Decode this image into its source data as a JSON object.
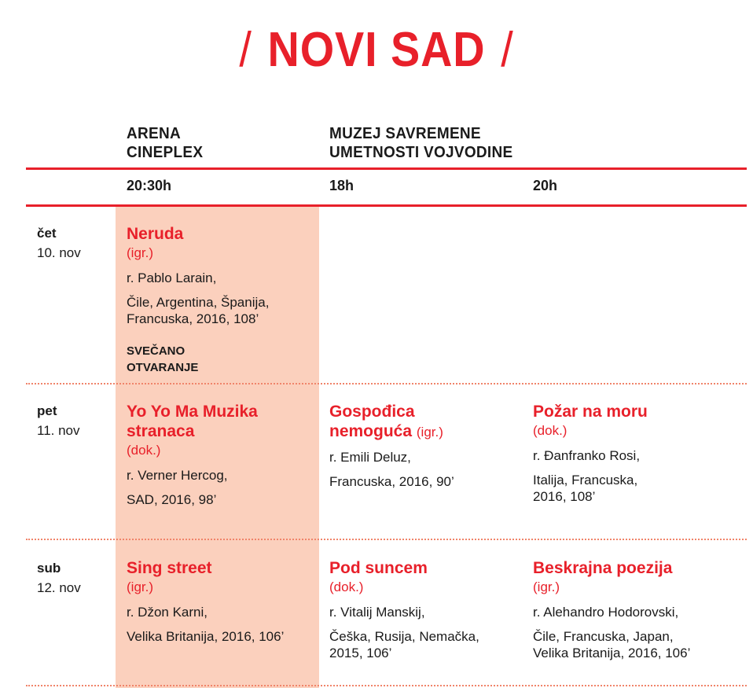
{
  "title": "NOVI SAD",
  "colors": {
    "accent": "#e8202a",
    "highlight": "#fbd0bd",
    "dotted": "#f0846a"
  },
  "venues": [
    {
      "name_line1": "ARENA",
      "name_line2": "CINEPLEX",
      "times": [
        "20:30h"
      ]
    },
    {
      "name_line1": "MUZEJ SAVREMENE",
      "name_line2": "UMETNOSTI VOJVODINE",
      "times": [
        "18h",
        "20h"
      ]
    }
  ],
  "rows": [
    {
      "day": "čet",
      "date": "10. nov",
      "films": [
        {
          "title": "Neruda",
          "genre": "(igr.)",
          "director": "r. Pablo Larain,",
          "country": "Čile, Argentina, Španija, Francuska, 2016, 108’",
          "note_line1": "SVEČANO",
          "note_line2": "OTVARANJE"
        },
        null,
        null
      ]
    },
    {
      "day": "pet",
      "date": "11. nov",
      "films": [
        {
          "title": "Yo Yo Ma Muzika stranaca",
          "genre": "(dok.)",
          "director": "r. Verner Hercog,",
          "country": "SAD, 2016, 98’"
        },
        {
          "title": "Gospođica nemoguća",
          "genre": "(igr.)",
          "director": "r. Emili Deluz,",
          "country": "Francuska, 2016, 90’"
        },
        {
          "title": "Požar na moru",
          "genre": "(dok.)",
          "director": "r. Đanfranko Rosi,",
          "country": "Italija, Francuska, 2016, 108’"
        }
      ]
    },
    {
      "day": "sub",
      "date": "12. nov",
      "films": [
        {
          "title": "Sing street",
          "genre": "(igr.)",
          "director": "r. Džon Karni,",
          "country": "Velika Britanija, 2016, 106’"
        },
        {
          "title": "Pod suncem",
          "genre": "(dok.)",
          "director": "r. Vitalij Manskij,",
          "country": "Češka, Rusija, Nemačka, 2015, 106’"
        },
        {
          "title": "Beskrajna poezija",
          "genre": "(igr.)",
          "director": "r. Alehandro Hodorovski,",
          "country": "Čile, Francuska, Japan, Velika Britanija, 2016, 106’"
        }
      ]
    }
  ]
}
